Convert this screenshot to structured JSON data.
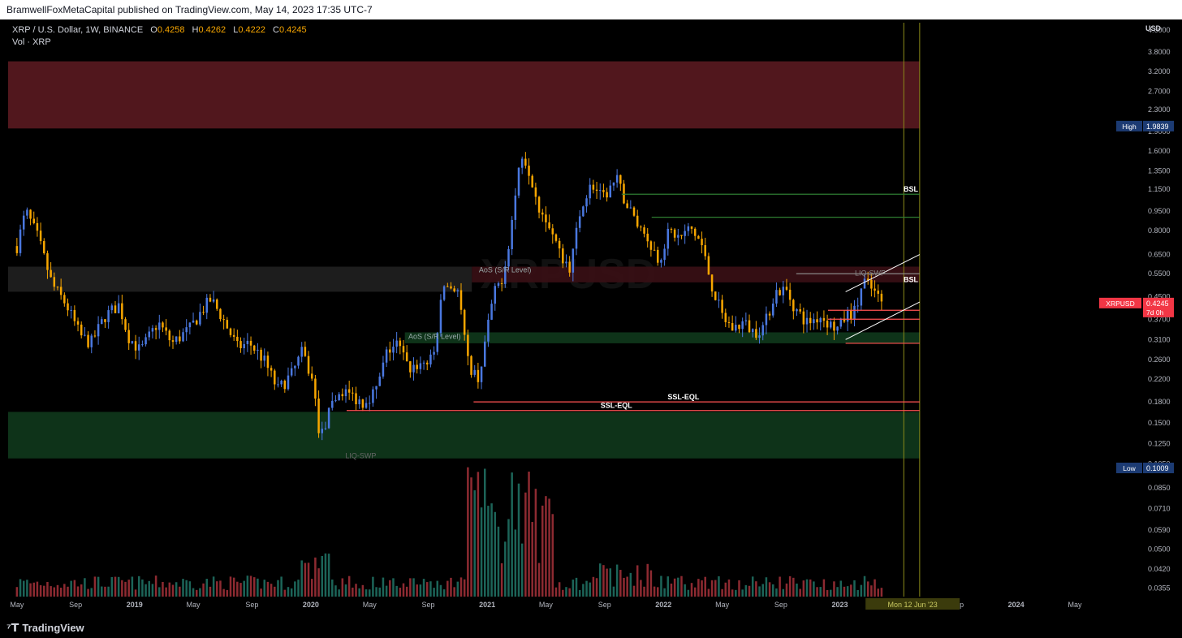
{
  "header": {
    "published": "BramwellFoxMetaCapital published on TradingView.com, May 14, 2023 17:35 UTC-7"
  },
  "legend": {
    "symbol": "XRP / U.S. Dollar, 1W, BINANCE",
    "o_label": "O",
    "o": "0.4258",
    "h_label": "H",
    "h": "0.4262",
    "l_label": "L",
    "l": "0.4222",
    "c_label": "C",
    "c": "0.4245",
    "vol": "Vol · XRP"
  },
  "colors": {
    "bull": "#4a78e0",
    "bear": "#f7a600",
    "vol_up": "#1f6f62",
    "vol_down": "#9c2f36",
    "supply_zone": "#5a1a20",
    "demand_zone": "#10381c",
    "aos_zone": "#3a1015",
    "grey_zone": "#202020",
    "price_tag": "#f23645",
    "high_tag": "#1c3b73"
  },
  "footer": {
    "brand": "TradingView"
  },
  "chart_data": {
    "type": "candlestick",
    "symbol": "XRPUSD",
    "currency": "USD",
    "y_scale": "log",
    "ylim": [
      0.033,
      4.9
    ],
    "y_ticks": [
      "4.6000",
      "3.8000",
      "3.2000",
      "2.7000",
      "2.3000",
      "1.9000",
      "1.6000",
      "1.3500",
      "1.1500",
      "0.9500",
      "0.8000",
      "0.6500",
      "0.5500",
      "0.4500",
      "0.3700",
      "0.3100",
      "0.2600",
      "0.2200",
      "0.1800",
      "0.1500",
      "0.1250",
      "0.1050",
      "0.0850",
      "0.0710",
      "0.0590",
      "0.0500",
      "0.0420",
      "0.0355"
    ],
    "x_ticks": [
      {
        "label": "May",
        "t": 0
      },
      {
        "label": "Sep",
        "t": 0.333
      },
      {
        "label": "2019",
        "t": 0.667
      },
      {
        "label": "May",
        "t": 1.0
      },
      {
        "label": "Sep",
        "t": 1.333
      },
      {
        "label": "2020",
        "t": 1.667
      },
      {
        "label": "May",
        "t": 2.0
      },
      {
        "label": "Sep",
        "t": 2.333
      },
      {
        "label": "2021",
        "t": 2.667
      },
      {
        "label": "May",
        "t": 3.0
      },
      {
        "label": "Sep",
        "t": 3.333
      },
      {
        "label": "2022",
        "t": 3.667
      },
      {
        "label": "May",
        "t": 4.0
      },
      {
        "label": "Sep",
        "t": 4.333
      },
      {
        "label": "2023",
        "t": 4.667
      },
      {
        "label": "Sep",
        "t": 5.333
      },
      {
        "label": "2024",
        "t": 5.667
      },
      {
        "label": "May",
        "t": 6.0
      }
    ],
    "close_path": [
      [
        0.0,
        0.7
      ],
      [
        0.05,
        0.95
      ],
      [
        0.12,
        0.75
      ],
      [
        0.2,
        0.5
      ],
      [
        0.28,
        0.42
      ],
      [
        0.36,
        0.32
      ],
      [
        0.42,
        0.3
      ],
      [
        0.5,
        0.38
      ],
      [
        0.58,
        0.42
      ],
      [
        0.63,
        0.32
      ],
      [
        0.7,
        0.28
      ],
      [
        0.8,
        0.36
      ],
      [
        0.88,
        0.3
      ],
      [
        0.98,
        0.34
      ],
      [
        1.05,
        0.4
      ],
      [
        1.1,
        0.44
      ],
      [
        1.16,
        0.38
      ],
      [
        1.25,
        0.29
      ],
      [
        1.32,
        0.3
      ],
      [
        1.4,
        0.26
      ],
      [
        1.48,
        0.2
      ],
      [
        1.56,
        0.23
      ],
      [
        1.62,
        0.28
      ],
      [
        1.68,
        0.21
      ],
      [
        1.72,
        0.13
      ],
      [
        1.78,
        0.17
      ],
      [
        1.84,
        0.2
      ],
      [
        1.9,
        0.19
      ],
      [
        1.96,
        0.18
      ],
      [
        2.04,
        0.2
      ],
      [
        2.1,
        0.28
      ],
      [
        2.16,
        0.3
      ],
      [
        2.22,
        0.24
      ],
      [
        2.28,
        0.25
      ],
      [
        2.36,
        0.26
      ],
      [
        2.42,
        0.5
      ],
      [
        2.5,
        0.48
      ],
      [
        2.56,
        0.25
      ],
      [
        2.62,
        0.22
      ],
      [
        2.7,
        0.45
      ],
      [
        2.76,
        0.55
      ],
      [
        2.8,
        0.8
      ],
      [
        2.86,
        1.6
      ],
      [
        2.9,
        1.4
      ],
      [
        2.96,
        1.0
      ],
      [
        3.02,
        0.85
      ],
      [
        3.08,
        0.65
      ],
      [
        3.14,
        0.58
      ],
      [
        3.2,
        1.0
      ],
      [
        3.26,
        1.2
      ],
      [
        3.32,
        1.05
      ],
      [
        3.4,
        1.25
      ],
      [
        3.46,
        1.0
      ],
      [
        3.52,
        0.85
      ],
      [
        3.58,
        0.75
      ],
      [
        3.64,
        0.62
      ],
      [
        3.7,
        0.8
      ],
      [
        3.76,
        0.75
      ],
      [
        3.82,
        0.82
      ],
      [
        3.88,
        0.72
      ],
      [
        3.94,
        0.5
      ],
      [
        4.0,
        0.38
      ],
      [
        4.06,
        0.34
      ],
      [
        4.12,
        0.36
      ],
      [
        4.18,
        0.33
      ],
      [
        4.24,
        0.35
      ],
      [
        4.3,
        0.47
      ],
      [
        4.36,
        0.48
      ],
      [
        4.42,
        0.4
      ],
      [
        4.48,
        0.36
      ],
      [
        4.56,
        0.38
      ],
      [
        4.62,
        0.35
      ],
      [
        4.66,
        0.34
      ],
      [
        4.7,
        0.38
      ],
      [
        4.76,
        0.4
      ],
      [
        4.8,
        0.52
      ],
      [
        4.86,
        0.47
      ],
      [
        4.9,
        0.43
      ]
    ],
    "last_price": "0.4245",
    "last_price_label": "XRPUSD",
    "countdown": "7d 0h",
    "high": {
      "label": "High",
      "value": "1.9839"
    },
    "low": {
      "label": "Low",
      "value": "0.1009"
    },
    "annotations": [
      {
        "text": "BSL",
        "price": 1.1
      },
      {
        "text": "BSL",
        "price": 0.5
      },
      {
        "text": "SSL-EQL",
        "price": 0.18
      },
      {
        "text": "SSL-EQL",
        "price": 0.167
      },
      {
        "text": "AoS (S/R Level)",
        "price": 0.545
      },
      {
        "text": "AoS (S/R Level)",
        "price": 0.305
      },
      {
        "text": "LIQ-SWP",
        "price": 0.108
      },
      {
        "text": "LIQ-SWP",
        "price": 0.53
      }
    ],
    "zones": [
      {
        "name": "supply",
        "from": 1.95,
        "to": 3.5
      },
      {
        "name": "demand",
        "from": 0.11,
        "to": 0.165
      },
      {
        "name": "aos-upper",
        "from": 0.51,
        "to": 0.585
      },
      {
        "name": "aos-lower",
        "from": 0.3,
        "to": 0.33
      },
      {
        "name": "grey-range",
        "from": 0.47,
        "to": 0.585
      }
    ],
    "cursor_label": "Mon 12 Jun '23",
    "watermark": "XRPUSD"
  }
}
